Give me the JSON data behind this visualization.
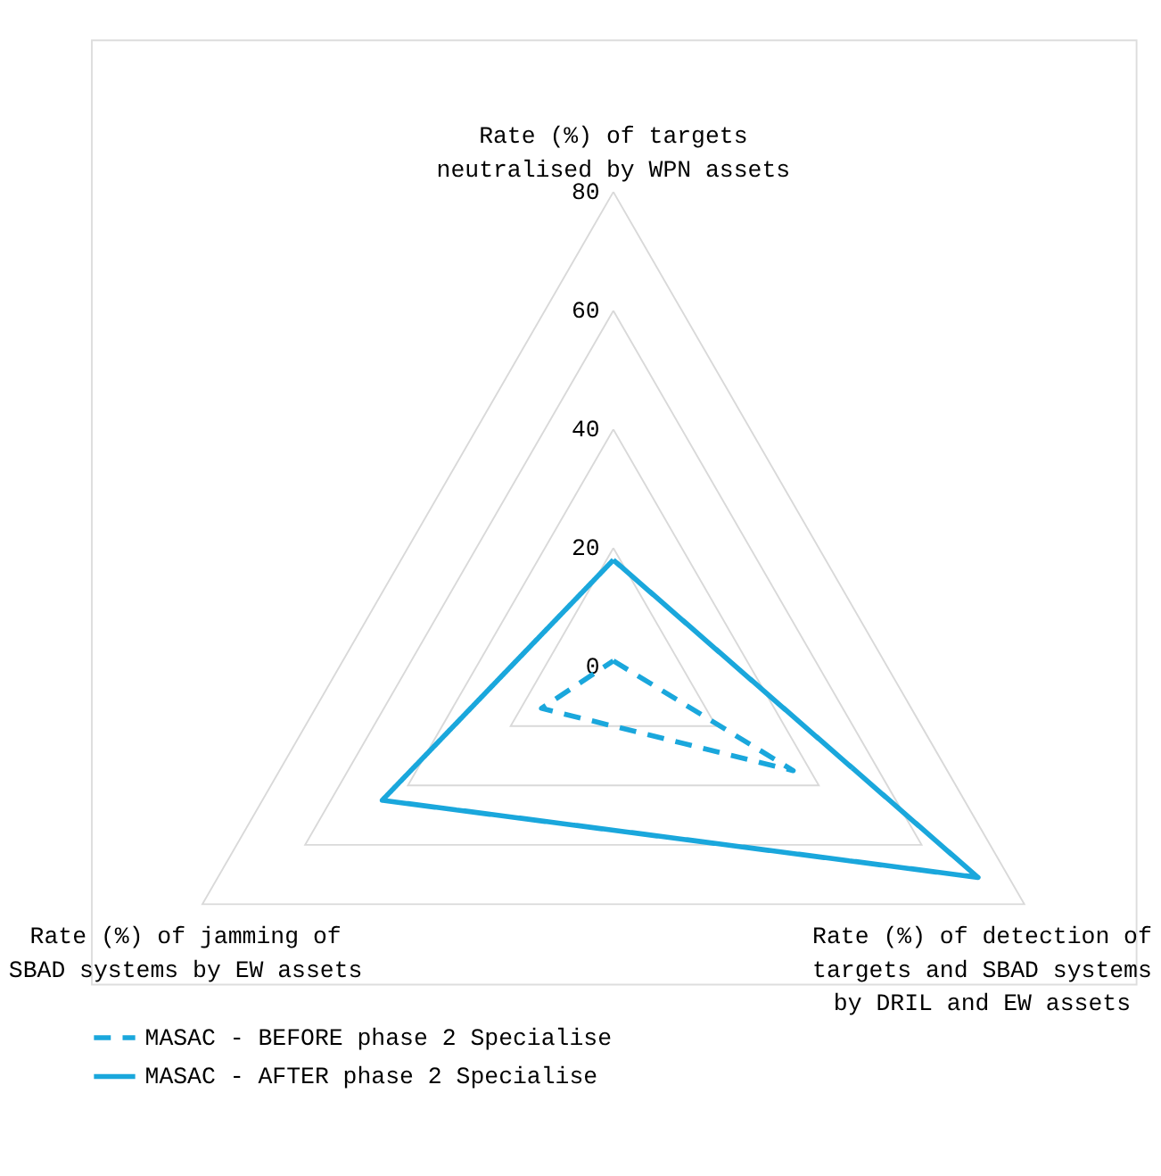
{
  "chart_data": {
    "type": "radar",
    "categories": [
      "Rate (%) of targets neutralised by WPN assets",
      "Rate (%) of detection of targets and SBAD systems by DRIL and EW assets",
      "Rate (%) of jamming of SBAD systems by EW assets"
    ],
    "series": [
      {
        "name": "MASAC - BEFORE phase 2 Specialise",
        "color": "#1aa7dc",
        "line_style": "dashed",
        "values": [
          1,
          35,
          14
        ]
      },
      {
        "name": "MASAC - AFTER phase 2 Specialise",
        "color": "#1aa7dc",
        "line_style": "solid",
        "values": [
          18,
          71,
          45
        ]
      }
    ],
    "ylim": [
      0,
      80
    ],
    "yticks": [
      0,
      20,
      40,
      60,
      80
    ],
    "grid": true,
    "legend": "bottom",
    "marker": "none"
  }
}
